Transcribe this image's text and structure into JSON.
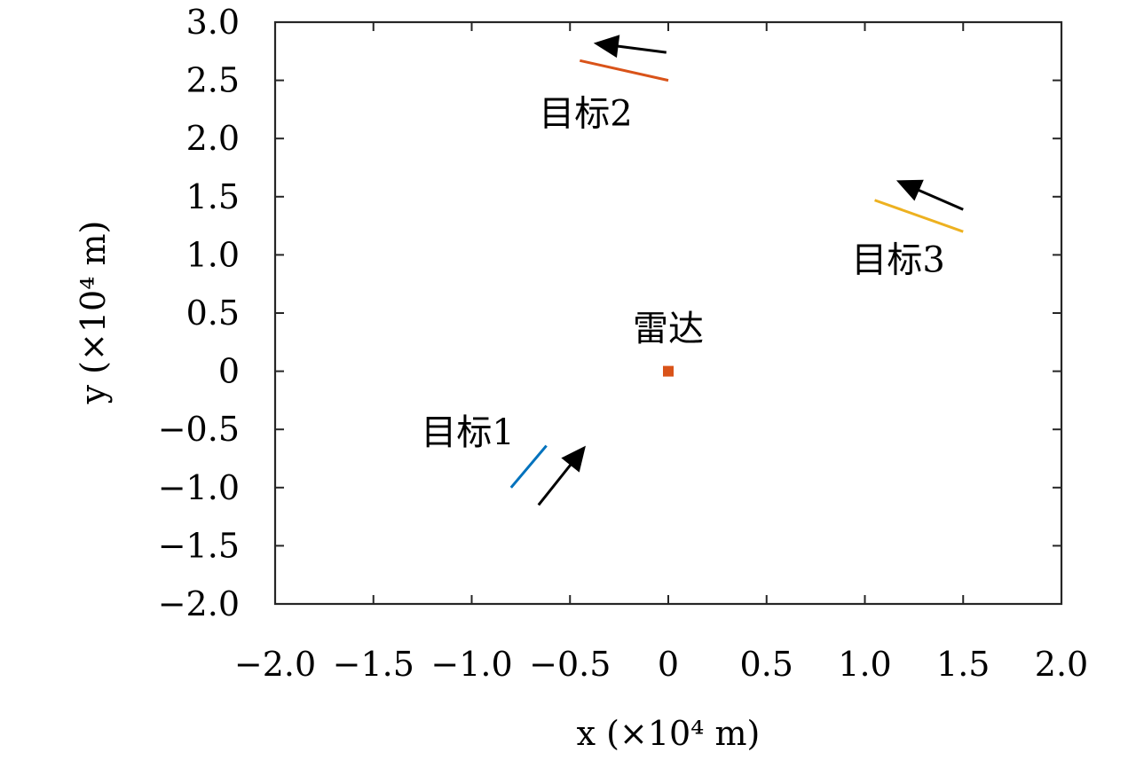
{
  "chart_data": {
    "type": "line",
    "xlabel": "x (×10⁴ m)",
    "ylabel": "y (×10⁴ m)",
    "xlim": [
      -2.0,
      2.0
    ],
    "ylim": [
      -2.0,
      3.0
    ],
    "x_ticks": [
      -2.0,
      -1.5,
      -1.0,
      -0.5,
      0,
      0.5,
      1.0,
      1.5,
      2.0
    ],
    "x_tick_labels": [
      "−2.0",
      "−1.5",
      "−1.0",
      "−0.5",
      "0",
      "0.5",
      "1.0",
      "1.5",
      "2.0"
    ],
    "y_ticks": [
      3.0,
      2.5,
      2.0,
      1.5,
      1.0,
      0.5,
      0,
      -0.5,
      -1.0,
      -1.5,
      -2.0
    ],
    "y_tick_labels": [
      "3.0",
      "2.5",
      "2.0",
      "1.5",
      "1.0",
      "0.5",
      "0",
      "−0.5",
      "−1.0",
      "−1.5",
      "−2.0"
    ],
    "grid": false,
    "series": [
      {
        "name": "目标1",
        "color": "#0072bd",
        "x": [
          -0.8,
          -0.62
        ],
        "y": [
          -1.0,
          -0.64
        ]
      },
      {
        "name": "目标2",
        "color": "#d95319",
        "x": [
          -0.45,
          0.0
        ],
        "y": [
          2.67,
          2.5
        ]
      },
      {
        "name": "目标3",
        "color": "#edb120",
        "x": [
          1.05,
          1.5
        ],
        "y": [
          1.47,
          1.2
        ]
      }
    ],
    "points": [
      {
        "name": "雷达",
        "color": "#d95319",
        "x": 0.0,
        "y": 0.0
      }
    ],
    "arrows": [
      {
        "from": [
          -0.66,
          -1.15
        ],
        "to": [
          -0.42,
          -0.64
        ],
        "color": "#000000"
      },
      {
        "from": [
          -0.01,
          2.74
        ],
        "to": [
          -0.38,
          2.82
        ],
        "color": "#000000"
      },
      {
        "from": [
          1.5,
          1.39
        ],
        "to": [
          1.16,
          1.64
        ],
        "color": "#000000"
      }
    ],
    "annotations": [
      {
        "text": "目标1",
        "x": -1.02,
        "y": -0.52
      },
      {
        "text": "目标2",
        "x": -0.42,
        "y": 2.22
      },
      {
        "text": "目标3",
        "x": 1.17,
        "y": 0.96
      },
      {
        "text": "雷达",
        "x": 0.0,
        "y": 0.37
      }
    ]
  }
}
